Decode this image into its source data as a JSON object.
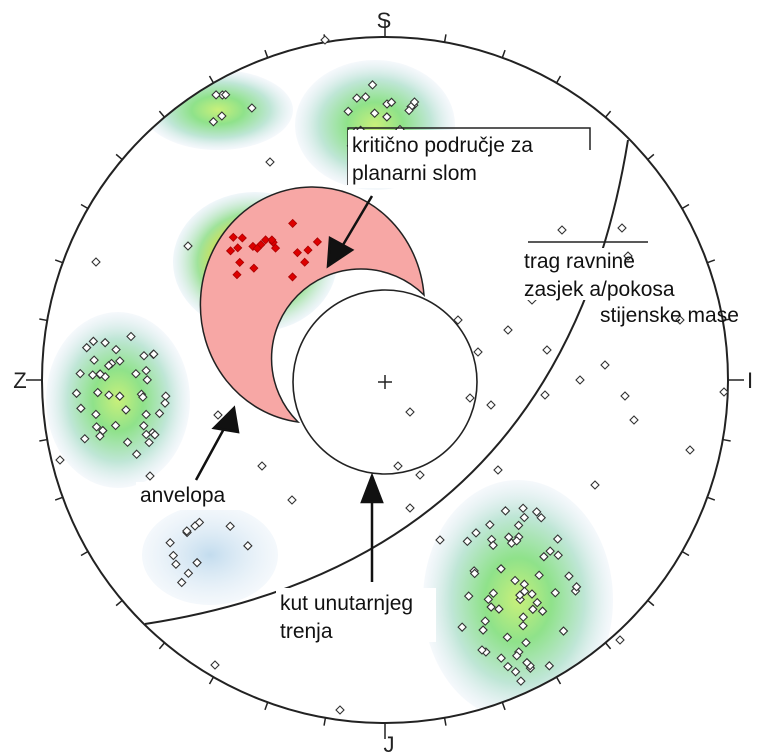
{
  "compass": {
    "north": "S",
    "south": "J",
    "west": "Z",
    "east": "I"
  },
  "labels": {
    "critical_zone_line1": "kritično područje za",
    "critical_zone_line2": "planarni slom",
    "slope_trace_line1": "trag ravnine",
    "slope_trace_line2": "zasjek a/pokosa",
    "slope_trace_line3": "stijenske mase",
    "envelope": "anvelopa",
    "friction_line1": "kut unutarnjeg",
    "friction_line2": "trenja"
  },
  "colors": {
    "critical_zone": "#f7a7a5",
    "pole_critical": "#dd0000",
    "density_low": "#c9dced",
    "density_mid": "#b5e6c2",
    "density_high": "#7ee07a",
    "density_peak": "#e06b1c",
    "outline": "#222222"
  }
}
